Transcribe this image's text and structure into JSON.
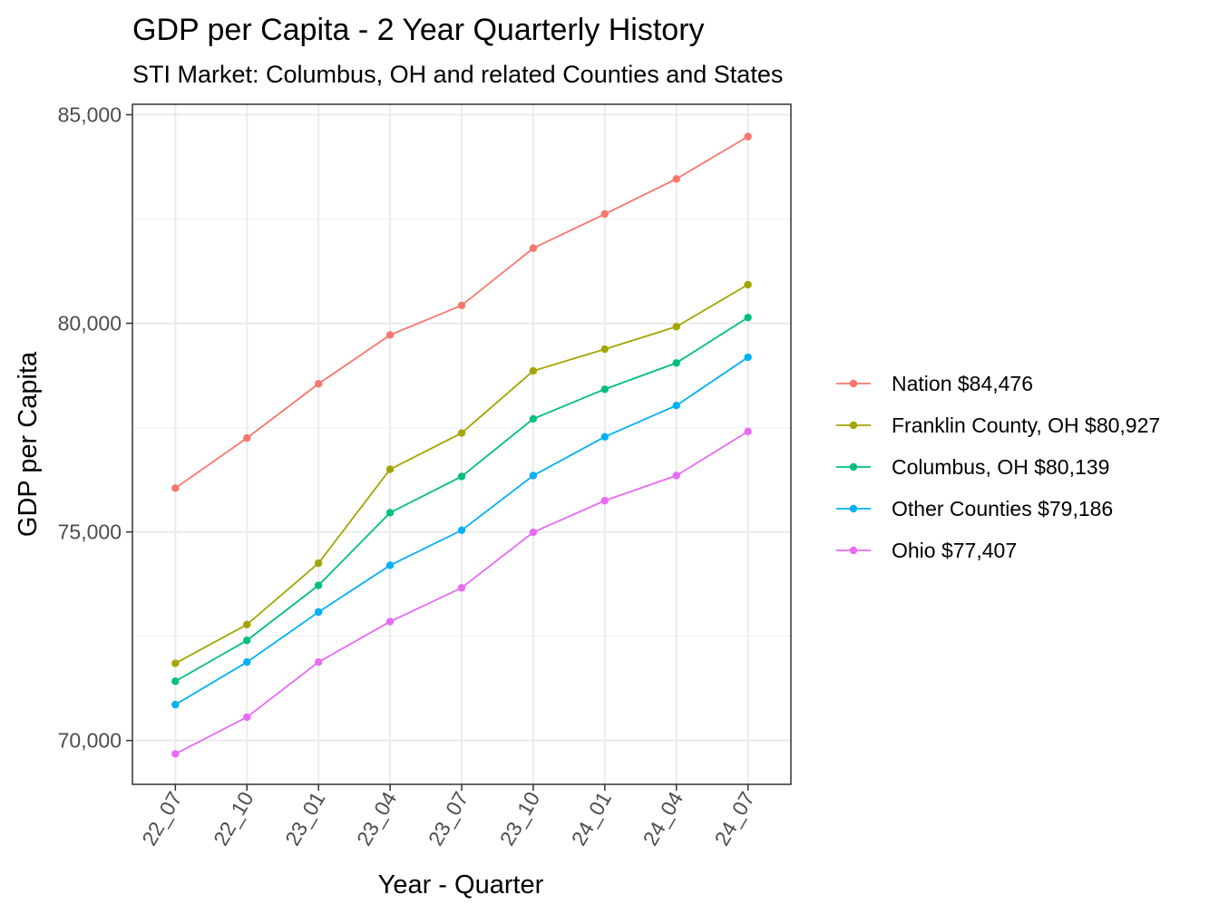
{
  "chart_data": {
    "type": "line",
    "title": "GDP per Capita - 2 Year Quarterly History",
    "subtitle": "STI Market: Columbus, OH and related Counties and States",
    "xlabel": "Year - Quarter",
    "ylabel": "GDP per Capita",
    "categories": [
      "22_07",
      "22_10",
      "23_01",
      "23_04",
      "23_07",
      "23_10",
      "24_01",
      "24_04",
      "24_07"
    ],
    "ylim": [
      68950,
      85250
    ],
    "y_ticks": [
      70000,
      75000,
      80000,
      85000
    ],
    "y_tick_labels": [
      "70,000",
      "75,000",
      "80,000",
      "85,000"
    ],
    "grid": true,
    "legend_position": "right",
    "series": [
      {
        "name": "Nation $84,476",
        "color": "#F8766D",
        "values": [
          76050,
          77250,
          78550,
          79720,
          80430,
          81800,
          82620,
          83460,
          84476
        ]
      },
      {
        "name": "Franklin County, OH $80,927",
        "color": "#A3A500",
        "values": [
          71850,
          72780,
          74250,
          76500,
          77370,
          78860,
          79380,
          79920,
          80927
        ]
      },
      {
        "name": "Columbus, OH $80,139",
        "color": "#00BF7D",
        "values": [
          71420,
          72400,
          73720,
          75460,
          76330,
          77710,
          78420,
          79050,
          80139
        ]
      },
      {
        "name": "Other Counties $79,186",
        "color": "#00B0F6",
        "values": [
          70860,
          71880,
          73080,
          74200,
          75040,
          76350,
          77280,
          78030,
          79186
        ]
      },
      {
        "name": "Ohio $77,407",
        "color": "#E76BF3",
        "values": [
          69680,
          70560,
          71880,
          72850,
          73660,
          74990,
          75750,
          76350,
          77407
        ]
      }
    ]
  }
}
